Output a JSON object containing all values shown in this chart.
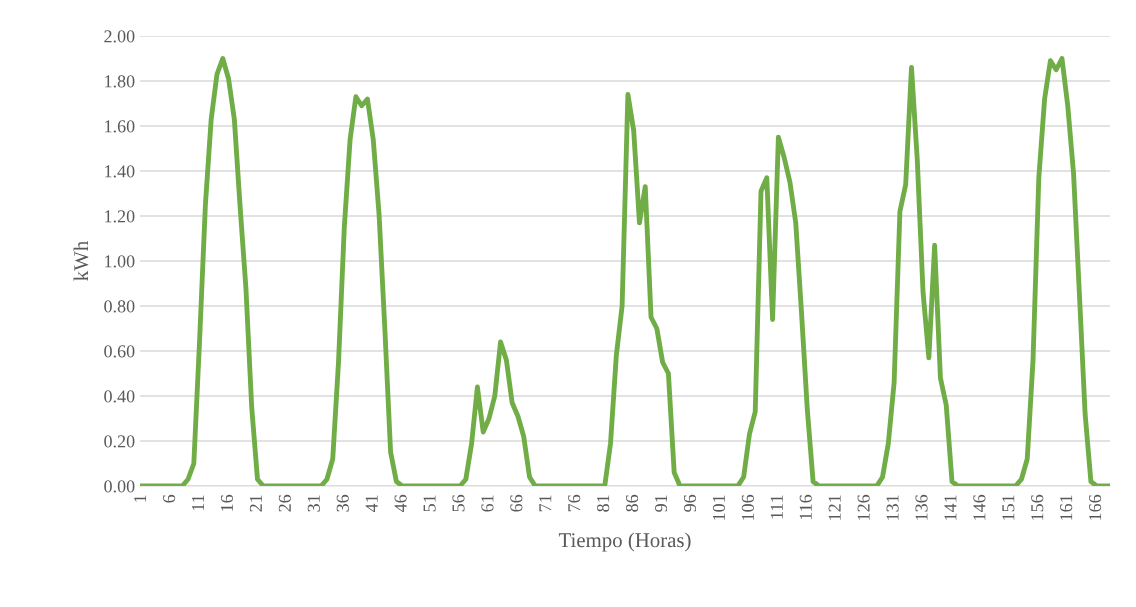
{
  "chart_data": {
    "type": "line",
    "xlabel": "Tiempo (Horas)",
    "ylabel": "kWh",
    "ylim": [
      0,
      2
    ],
    "yticks": [
      {
        "value": 0,
        "label": "0.00"
      },
      {
        "value": 0.2,
        "label": "0.20"
      },
      {
        "value": 0.4,
        "label": "0.40"
      },
      {
        "value": 0.6,
        "label": "0.60"
      },
      {
        "value": 0.8,
        "label": "0.80"
      },
      {
        "value": 1,
        "label": "1.00"
      },
      {
        "value": 1.2,
        "label": "1.20"
      },
      {
        "value": 1.4,
        "label": "1.40"
      },
      {
        "value": 1.6,
        "label": "1.60"
      },
      {
        "value": 1.8,
        "label": "1.80"
      },
      {
        "value": 2,
        "label": "2.00"
      }
    ],
    "grid": "y",
    "legend": false,
    "marker": "none",
    "line_style": "solid",
    "categories": [
      "1",
      null,
      null,
      null,
      null,
      "6",
      null,
      null,
      null,
      null,
      "11",
      null,
      null,
      null,
      null,
      "16",
      null,
      null,
      null,
      null,
      "21",
      null,
      null,
      null,
      null,
      "26",
      null,
      null,
      null,
      null,
      "31",
      null,
      null,
      null,
      null,
      "36",
      null,
      null,
      null,
      null,
      "41",
      null,
      null,
      null,
      null,
      "46",
      null,
      null,
      null,
      null,
      "51",
      null,
      null,
      null,
      null,
      "56",
      null,
      null,
      null,
      null,
      "61",
      null,
      null,
      null,
      null,
      "66",
      null,
      null,
      null,
      null,
      "71",
      null,
      null,
      null,
      null,
      "76",
      null,
      null,
      null,
      null,
      "81",
      null,
      null,
      null,
      null,
      "86",
      null,
      null,
      null,
      null,
      "91",
      null,
      null,
      null,
      null,
      "96",
      null,
      null,
      null,
      null,
      "101",
      null,
      null,
      null,
      null,
      "106",
      null,
      null,
      null,
      null,
      "111",
      null,
      null,
      null,
      null,
      "116",
      null,
      null,
      null,
      null,
      "121",
      null,
      null,
      null,
      null,
      "126",
      null,
      null,
      null,
      null,
      "131",
      null,
      null,
      null,
      null,
      "136",
      null,
      null,
      null,
      null,
      "141",
      null,
      null,
      null,
      null,
      "146",
      null,
      null,
      null,
      null,
      "151",
      null,
      null,
      null,
      null,
      "156",
      null,
      null,
      null,
      null,
      "161",
      null,
      null,
      null,
      null,
      "166",
      null,
      null
    ],
    "series": [
      {
        "color": "#70ad47",
        "values": [
          0,
          0,
          0,
          0,
          0,
          0,
          0,
          0,
          0.03,
          0.1,
          0.65,
          1.25,
          1.63,
          1.83,
          1.9,
          1.81,
          1.63,
          1.24,
          0.88,
          0.35,
          0.03,
          0,
          0,
          0,
          0,
          0,
          0,
          0,
          0,
          0,
          0,
          0,
          0.03,
          0.12,
          0.55,
          1.15,
          1.54,
          1.73,
          1.69,
          1.72,
          1.54,
          1.21,
          0.7,
          0.15,
          0.02,
          0,
          0,
          0,
          0,
          0,
          0,
          0,
          0,
          0,
          0,
          0,
          0.03,
          0.19,
          0.44,
          0.24,
          0.3,
          0.4,
          0.64,
          0.56,
          0.37,
          0.31,
          0.22,
          0.04,
          0,
          0,
          0,
          0,
          0,
          0,
          0,
          0,
          0,
          0,
          0,
          0,
          0,
          0.19,
          0.58,
          0.8,
          1.74,
          1.58,
          1.17,
          1.33,
          0.75,
          0.7,
          0.55,
          0.5,
          0.06,
          0,
          0,
          0,
          0,
          0,
          0,
          0,
          0,
          0,
          0,
          0,
          0.04,
          0.23,
          0.33,
          1.31,
          1.37,
          0.74,
          1.55,
          1.46,
          1.35,
          1.17,
          0.77,
          0.34,
          0.02,
          0,
          0,
          0,
          0,
          0,
          0,
          0,
          0,
          0,
          0,
          0,
          0.04,
          0.19,
          0.46,
          1.22,
          1.34,
          1.86,
          1.45,
          0.86,
          0.57,
          1.07,
          0.48,
          0.36,
          0.02,
          0,
          0,
          0,
          0,
          0,
          0,
          0,
          0,
          0,
          0,
          0,
          0.03,
          0.12,
          0.56,
          1.37,
          1.72,
          1.89,
          1.85,
          1.9,
          1.69,
          1.39,
          0.86,
          0.32,
          0.02,
          0,
          0,
          0
        ]
      }
    ]
  }
}
